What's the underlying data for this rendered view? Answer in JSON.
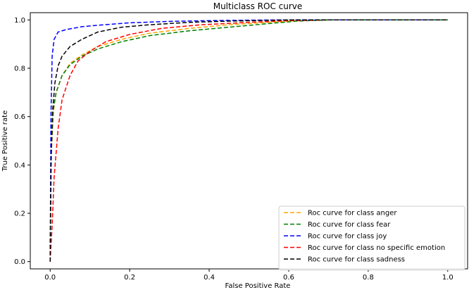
{
  "chart_data": {
    "type": "line",
    "title": "Multiclass ROC curve",
    "xlabel": "False Positive Rate",
    "ylabel": "True Positive rate",
    "xlim": [
      -0.05,
      1.05
    ],
    "ylim": [
      -0.03,
      1.03
    ],
    "x_ticks": [
      0.0,
      0.2,
      0.4,
      0.6,
      0.8,
      1.0
    ],
    "y_ticks": [
      0.0,
      0.2,
      0.4,
      0.6,
      0.8,
      1.0
    ],
    "x_tick_labels": [
      "0.0",
      "0.2",
      "0.4",
      "0.6",
      "0.8",
      "1.0"
    ],
    "y_tick_labels": [
      "0.0",
      "0.2",
      "0.4",
      "0.6",
      "0.8",
      "1.0"
    ],
    "grid": false,
    "legend_position": "lower-right",
    "series": [
      {
        "name": "Roc curve for class anger",
        "color": "#ffa500",
        "line_style": "dashed",
        "points": [
          [
            0.0,
            0.0
          ],
          [
            0.003,
            0.45
          ],
          [
            0.008,
            0.62
          ],
          [
            0.015,
            0.7
          ],
          [
            0.03,
            0.77
          ],
          [
            0.05,
            0.82
          ],
          [
            0.08,
            0.855
          ],
          [
            0.12,
            0.89
          ],
          [
            0.18,
            0.92
          ],
          [
            0.25,
            0.945
          ],
          [
            0.35,
            0.965
          ],
          [
            0.45,
            0.98
          ],
          [
            0.55,
            0.99
          ],
          [
            0.6,
            0.995
          ],
          [
            0.7,
            1.0
          ],
          [
            1.0,
            1.0
          ]
        ]
      },
      {
        "name": "Roc curve for class fear",
        "color": "#008000",
        "line_style": "dashed",
        "points": [
          [
            0.0,
            0.0
          ],
          [
            0.003,
            0.47
          ],
          [
            0.008,
            0.63
          ],
          [
            0.015,
            0.7
          ],
          [
            0.03,
            0.77
          ],
          [
            0.05,
            0.815
          ],
          [
            0.08,
            0.85
          ],
          [
            0.12,
            0.88
          ],
          [
            0.18,
            0.91
          ],
          [
            0.25,
            0.935
          ],
          [
            0.35,
            0.955
          ],
          [
            0.45,
            0.97
          ],
          [
            0.55,
            0.985
          ],
          [
            0.62,
            0.995
          ],
          [
            0.7,
            1.0
          ],
          [
            1.0,
            1.0
          ]
        ]
      },
      {
        "name": "Roc curve for class joy",
        "color": "#0000ff",
        "line_style": "dashed",
        "points": [
          [
            0.0,
            0.0
          ],
          [
            0.002,
            0.6
          ],
          [
            0.005,
            0.85
          ],
          [
            0.01,
            0.92
          ],
          [
            0.02,
            0.95
          ],
          [
            0.04,
            0.96
          ],
          [
            0.08,
            0.972
          ],
          [
            0.12,
            0.978
          ],
          [
            0.2,
            0.988
          ],
          [
            0.3,
            0.994
          ],
          [
            0.4,
            0.997
          ],
          [
            0.5,
            0.999
          ],
          [
            0.6,
            1.0
          ],
          [
            1.0,
            1.0
          ]
        ]
      },
      {
        "name": "Roc curve for class no specific emotion",
        "color": "#ff0000",
        "line_style": "dashed",
        "points": [
          [
            0.0,
            0.0
          ],
          [
            0.005,
            0.15
          ],
          [
            0.01,
            0.35
          ],
          [
            0.02,
            0.55
          ],
          [
            0.03,
            0.67
          ],
          [
            0.05,
            0.77
          ],
          [
            0.07,
            0.83
          ],
          [
            0.1,
            0.87
          ],
          [
            0.14,
            0.91
          ],
          [
            0.2,
            0.94
          ],
          [
            0.28,
            0.965
          ],
          [
            0.38,
            0.98
          ],
          [
            0.5,
            0.99
          ],
          [
            0.6,
            0.997
          ],
          [
            0.7,
            1.0
          ],
          [
            1.0,
            1.0
          ]
        ]
      },
      {
        "name": "Roc curve for class sadness",
        "color": "#000000",
        "line_style": "dashed",
        "points": [
          [
            0.0,
            0.0
          ],
          [
            0.002,
            0.4
          ],
          [
            0.006,
            0.62
          ],
          [
            0.012,
            0.74
          ],
          [
            0.02,
            0.81
          ],
          [
            0.03,
            0.85
          ],
          [
            0.05,
            0.89
          ],
          [
            0.08,
            0.92
          ],
          [
            0.12,
            0.95
          ],
          [
            0.18,
            0.97
          ],
          [
            0.25,
            0.98
          ],
          [
            0.35,
            0.99
          ],
          [
            0.45,
            0.995
          ],
          [
            0.6,
            1.0
          ],
          [
            1.0,
            1.0
          ]
        ]
      }
    ]
  }
}
